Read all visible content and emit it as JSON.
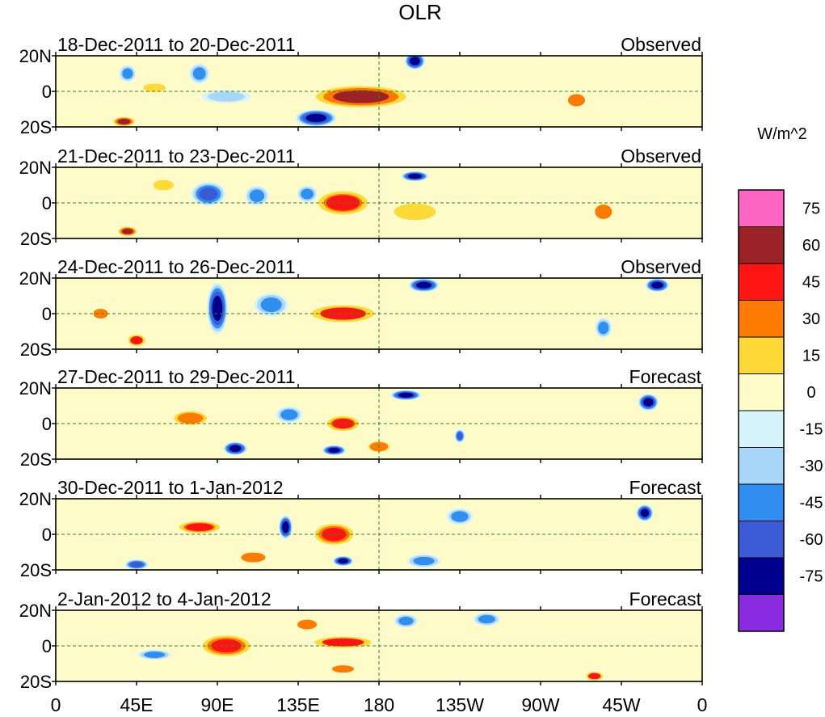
{
  "chart_data": {
    "type": "heatmap",
    "title": "OLR",
    "units_label": "W/m^2",
    "colorbar": {
      "levels": [
        "75",
        "60",
        "45",
        "30",
        "15",
        "0",
        "-15",
        "-30",
        "-45",
        "-60",
        "-75"
      ],
      "colors": [
        "#ff66c4",
        "#9b2226",
        "#ff1414",
        "#ff7a00",
        "#ffd935",
        "#fffbc8",
        "#d8f4fb",
        "#a8d6f7",
        "#2f8ef0",
        "#3b5bd6",
        "#00008f",
        "#8a2be2"
      ]
    },
    "x_ticks": [
      "0",
      "45E",
      "90E",
      "135E",
      "180",
      "135W",
      "90W",
      "45W",
      "0"
    ],
    "y_ticks": [
      "20N",
      "0",
      "20S"
    ],
    "xlim_deg_east": [
      0,
      360
    ],
    "ylim_deg_lat": [
      -20,
      20
    ],
    "panels": [
      {
        "period": "18-Dec-2011 to 20-Dec-2011",
        "kind": "Observed",
        "features": [
          {
            "lon": 170,
            "lat": -3,
            "value": 60,
            "w": 30,
            "h": 7
          },
          {
            "lon": 145,
            "lat": -15,
            "value": -75,
            "w": 12,
            "h": 5
          },
          {
            "lon": 95,
            "lat": -3,
            "value": -30,
            "w": 15,
            "h": 4
          },
          {
            "lon": 200,
            "lat": 17,
            "value": -75,
            "w": 6,
            "h": 5
          },
          {
            "lon": 38,
            "lat": -17,
            "value": 60,
            "w": 7,
            "h": 3
          },
          {
            "lon": 80,
            "lat": 10,
            "value": -45,
            "w": 6,
            "h": 6
          },
          {
            "lon": 40,
            "lat": 10,
            "value": -45,
            "w": 5,
            "h": 5
          },
          {
            "lon": 290,
            "lat": -5,
            "value": 30,
            "w": 7,
            "h": 5
          },
          {
            "lon": 55,
            "lat": 2,
            "value": 20,
            "w": 8,
            "h": 3
          }
        ]
      },
      {
        "period": "21-Dec-2011 to 23-Dec-2011",
        "kind": "Observed",
        "features": [
          {
            "lon": 160,
            "lat": 0,
            "value": 50,
            "w": 17,
            "h": 8
          },
          {
            "lon": 85,
            "lat": 5,
            "value": -60,
            "w": 10,
            "h": 7
          },
          {
            "lon": 112,
            "lat": 4,
            "value": -45,
            "w": 7,
            "h": 6
          },
          {
            "lon": 40,
            "lat": -16,
            "value": 60,
            "w": 6,
            "h": 3
          },
          {
            "lon": 200,
            "lat": 15,
            "value": -75,
            "w": 8,
            "h": 3
          },
          {
            "lon": 200,
            "lat": -5,
            "value": 20,
            "w": 15,
            "h": 6
          },
          {
            "lon": 140,
            "lat": 5,
            "value": -45,
            "w": 6,
            "h": 5
          },
          {
            "lon": 305,
            "lat": -5,
            "value": 30,
            "w": 7,
            "h": 6
          },
          {
            "lon": 60,
            "lat": 10,
            "value": 25,
            "w": 8,
            "h": 4
          }
        ]
      },
      {
        "period": "24-Dec-2011 to 26-Dec-2011",
        "kind": "Observed",
        "features": [
          {
            "lon": 160,
            "lat": 0,
            "value": 45,
            "w": 22,
            "h": 6
          },
          {
            "lon": 90,
            "lat": 3,
            "value": -75,
            "w": 6,
            "h": 15
          },
          {
            "lon": 120,
            "lat": 5,
            "value": -45,
            "w": 10,
            "h": 7
          },
          {
            "lon": 205,
            "lat": 16,
            "value": -75,
            "w": 9,
            "h": 4
          },
          {
            "lon": 335,
            "lat": 16,
            "value": -75,
            "w": 7,
            "h": 4
          },
          {
            "lon": 45,
            "lat": -15,
            "value": 45,
            "w": 6,
            "h": 4
          },
          {
            "lon": 305,
            "lat": -8,
            "value": -45,
            "w": 5,
            "h": 6
          },
          {
            "lon": 25,
            "lat": 0,
            "value": 30,
            "w": 6,
            "h": 4
          }
        ]
      },
      {
        "period": "27-Dec-2011 to 29-Dec-2011",
        "kind": "Forecast",
        "features": [
          {
            "lon": 160,
            "lat": 0,
            "value": 50,
            "w": 11,
            "h": 5
          },
          {
            "lon": 75,
            "lat": 3,
            "value": 40,
            "w": 12,
            "h": 5
          },
          {
            "lon": 100,
            "lat": -14,
            "value": -75,
            "w": 7,
            "h": 4
          },
          {
            "lon": 195,
            "lat": 16,
            "value": -75,
            "w": 9,
            "h": 3
          },
          {
            "lon": 155,
            "lat": -15,
            "value": -75,
            "w": 7,
            "h": 3
          },
          {
            "lon": 225,
            "lat": -7,
            "value": -60,
            "w": 3,
            "h": 4
          },
          {
            "lon": 330,
            "lat": 12,
            "value": -75,
            "w": 6,
            "h": 5
          },
          {
            "lon": 180,
            "lat": -13,
            "value": 35,
            "w": 8,
            "h": 4
          },
          {
            "lon": 130,
            "lat": 5,
            "value": -40,
            "w": 8,
            "h": 5
          }
        ]
      },
      {
        "period": "30-Dec-2011 to 1-Jan-2012",
        "kind": "Forecast",
        "features": [
          {
            "lon": 155,
            "lat": 0,
            "value": 55,
            "w": 13,
            "h": 7
          },
          {
            "lon": 80,
            "lat": 4,
            "value": 50,
            "w": 14,
            "h": 4
          },
          {
            "lon": 128,
            "lat": 4,
            "value": -75,
            "w": 4,
            "h": 7
          },
          {
            "lon": 160,
            "lat": -15,
            "value": -75,
            "w": 6,
            "h": 3
          },
          {
            "lon": 328,
            "lat": 12,
            "value": -75,
            "w": 5,
            "h": 5
          },
          {
            "lon": 45,
            "lat": -17,
            "value": -60,
            "w": 7,
            "h": 3
          },
          {
            "lon": 205,
            "lat": -15,
            "value": -45,
            "w": 10,
            "h": 4
          },
          {
            "lon": 110,
            "lat": -13,
            "value": 30,
            "w": 10,
            "h": 4
          },
          {
            "lon": 225,
            "lat": 10,
            "value": -40,
            "w": 8,
            "h": 5
          }
        ]
      },
      {
        "period": "2-Jan-2012 to 4-Jan-2012",
        "kind": "Forecast",
        "features": [
          {
            "lon": 95,
            "lat": 0,
            "value": 55,
            "w": 16,
            "h": 7
          },
          {
            "lon": 160,
            "lat": 2,
            "value": 45,
            "w": 20,
            "h": 4
          },
          {
            "lon": 160,
            "lat": -13,
            "value": 30,
            "w": 9,
            "h": 3
          },
          {
            "lon": 300,
            "lat": -17,
            "value": 45,
            "w": 6,
            "h": 3
          },
          {
            "lon": 55,
            "lat": -5,
            "value": -45,
            "w": 10,
            "h": 3
          },
          {
            "lon": 195,
            "lat": 14,
            "value": -45,
            "w": 7,
            "h": 4
          },
          {
            "lon": 240,
            "lat": 15,
            "value": -45,
            "w": 8,
            "h": 4
          },
          {
            "lon": 140,
            "lat": 12,
            "value": 30,
            "w": 8,
            "h": 4
          }
        ]
      }
    ]
  }
}
